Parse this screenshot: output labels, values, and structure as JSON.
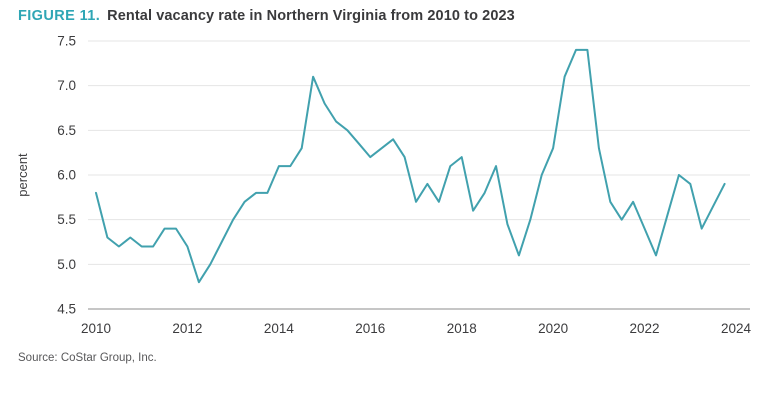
{
  "figure": {
    "label": "FIGURE 11.",
    "title": "Rental vacancy rate in Northern Virginia from 2010 to 2023"
  },
  "source": "Source: CoStar Group, Inc.",
  "colors": {
    "accent_teal": "#2fa6b5",
    "line": "#41a1ae",
    "title_text": "#3a3a3c",
    "tick_text": "#3c3c3e",
    "gridline": "#e4e4e4",
    "axis_line": "#b3b3b3",
    "ylabel_text": "#3f3f41"
  },
  "chart_data": {
    "type": "line",
    "title": "Rental vacancy rate in Northern Virginia from 2010 to 2023",
    "series_name": "Rental vacancy rate",
    "xlabel": "",
    "ylabel": "percent",
    "x_start": 2010,
    "x_step": 0.25,
    "values": [
      5.8,
      5.3,
      5.2,
      5.3,
      5.2,
      5.2,
      5.4,
      5.4,
      5.2,
      4.8,
      5.0,
      5.25,
      5.5,
      5.7,
      5.8,
      5.8,
      6.1,
      6.1,
      6.3,
      7.1,
      6.8,
      6.6,
      6.5,
      6.35,
      6.2,
      6.3,
      6.4,
      6.2,
      5.7,
      5.9,
      5.7,
      6.1,
      6.2,
      5.6,
      5.8,
      6.1,
      5.45,
      5.1,
      5.5,
      6.0,
      6.3,
      7.1,
      7.4,
      7.4,
      6.3,
      5.7,
      5.5,
      5.7,
      5.4,
      5.1,
      5.55,
      6.0,
      5.9,
      5.4,
      5.65,
      5.9
    ],
    "x_ticks": [
      2010,
      2012,
      2014,
      2016,
      2018,
      2020,
      2022,
      2024
    ],
    "y_ticks": [
      4.5,
      5.0,
      5.5,
      6.0,
      6.5,
      7.0,
      7.5
    ],
    "xlim": [
      2010,
      2024
    ],
    "ylim": [
      4.5,
      7.5
    ],
    "grid": "horizontal",
    "legend": "none",
    "source": "CoStar Group, Inc."
  }
}
